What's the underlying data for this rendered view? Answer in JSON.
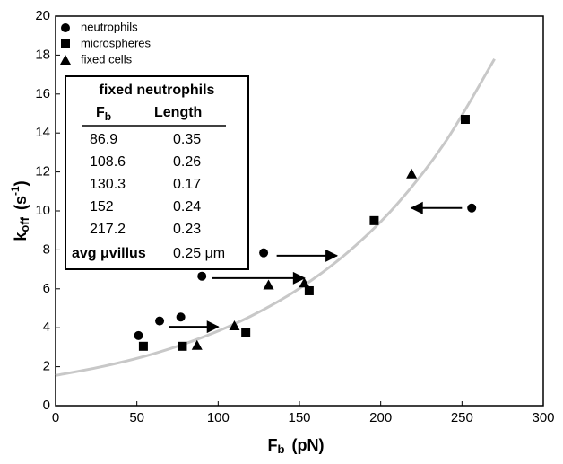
{
  "chart_data": {
    "type": "scatter",
    "xlabel": {
      "main": "F",
      "sub": "b",
      "rest": "(pN)"
    },
    "ylabel": {
      "main": "k",
      "sub": "off",
      "rest": "(s",
      "sup": "-1",
      "close": ")"
    },
    "xlim": [
      0,
      300
    ],
    "xticks": [
      0,
      50,
      100,
      150,
      200,
      250,
      300
    ],
    "ylim": [
      0,
      20
    ],
    "yticks": [
      0,
      2,
      4,
      6,
      8,
      10,
      12,
      14,
      16,
      18,
      20
    ],
    "series": [
      {
        "name": "neutrophils",
        "marker": "circle",
        "color": "#000000",
        "x": [
          51,
          64,
          77,
          90,
          128,
          256
        ],
        "values": [
          3.6,
          4.35,
          4.55,
          6.65,
          7.85,
          10.15
        ]
      },
      {
        "name": "microspheres",
        "marker": "square",
        "color": "#000000",
        "x": [
          54,
          78,
          117,
          156,
          196,
          252
        ],
        "values": [
          3.05,
          3.05,
          3.75,
          5.9,
          9.5,
          14.7
        ]
      },
      {
        "name": "fixed cells",
        "marker": "triangle",
        "color": "#000000",
        "x": [
          87,
          110,
          131,
          153,
          219
        ],
        "values": [
          3.1,
          4.1,
          6.2,
          6.3,
          11.9
        ]
      }
    ],
    "fit": {
      "color": "#c8c8c8",
      "x": [
        0,
        30,
        60,
        90,
        120,
        150,
        180,
        210,
        240,
        270
      ],
      "values": [
        1.55,
        2.03,
        2.66,
        3.5,
        4.59,
        6.02,
        7.89,
        10.34,
        13.57,
        17.8
      ]
    },
    "arrows": [
      {
        "x1": 70,
        "x2": 100,
        "y": 4.05
      },
      {
        "x1": 96,
        "x2": 153,
        "y": 6.55
      },
      {
        "x1": 136,
        "x2": 173,
        "y": 7.7
      },
      {
        "x1": 250,
        "x2": 219,
        "y": 10.15
      }
    ]
  },
  "table": {
    "title": "fixed neutrophils",
    "header": [
      {
        "main": "F",
        "sub": "b"
      },
      "Length"
    ],
    "rows": [
      [
        "86.9",
        "0.35"
      ],
      [
        "108.6",
        "0.26"
      ],
      [
        "130.3",
        "0.17"
      ],
      [
        "152",
        "0.24"
      ],
      [
        "217.2",
        "0.23"
      ]
    ],
    "footer": [
      "avg μvillus",
      "0.25 μm"
    ]
  }
}
